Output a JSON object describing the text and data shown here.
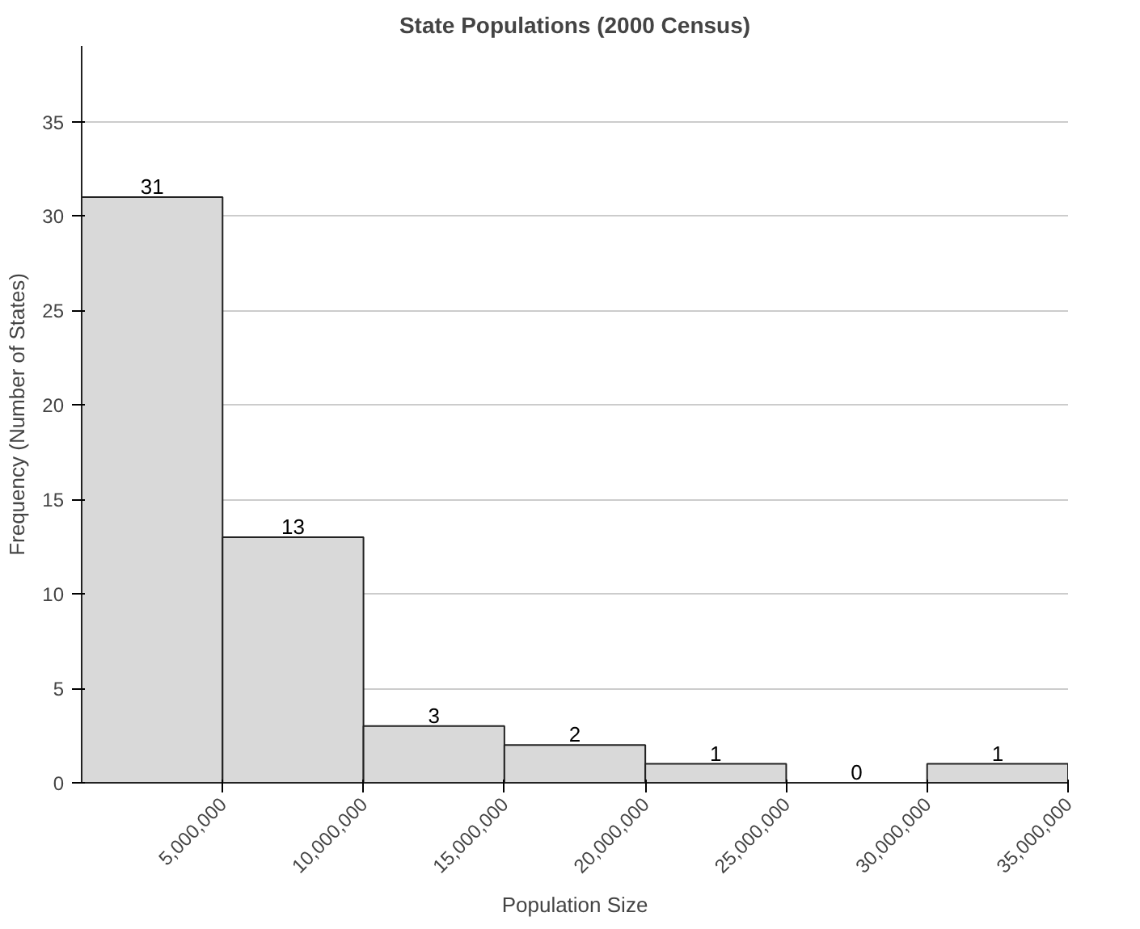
{
  "chart_data": {
    "type": "histogram",
    "title": "State Populations (2000 Census)",
    "xlabel": "Population Size",
    "ylabel": "Frequency (Number of States)",
    "bins": [
      0,
      5000000,
      10000000,
      15000000,
      20000000,
      25000000,
      30000000,
      35000000
    ],
    "values": [
      31,
      13,
      3,
      2,
      1,
      0,
      1
    ],
    "color": "#d9d9d9",
    "xlim": [
      0,
      35000000
    ],
    "ylim": [
      0,
      39
    ],
    "xticks": [
      {
        "value": 5000000,
        "label": "5,000,000"
      },
      {
        "value": 10000000,
        "label": "10,000,000"
      },
      {
        "value": 15000000,
        "label": "15,000,000"
      },
      {
        "value": 20000000,
        "label": "20,000,000"
      },
      {
        "value": 25000000,
        "label": "25,000,000"
      },
      {
        "value": 30000000,
        "label": "30,000,000"
      },
      {
        "value": 35000000,
        "label": "35,000,000"
      }
    ],
    "yticks": [
      0,
      5,
      10,
      15,
      20,
      25,
      30,
      35
    ],
    "grid": "y",
    "data_labels": true
  }
}
